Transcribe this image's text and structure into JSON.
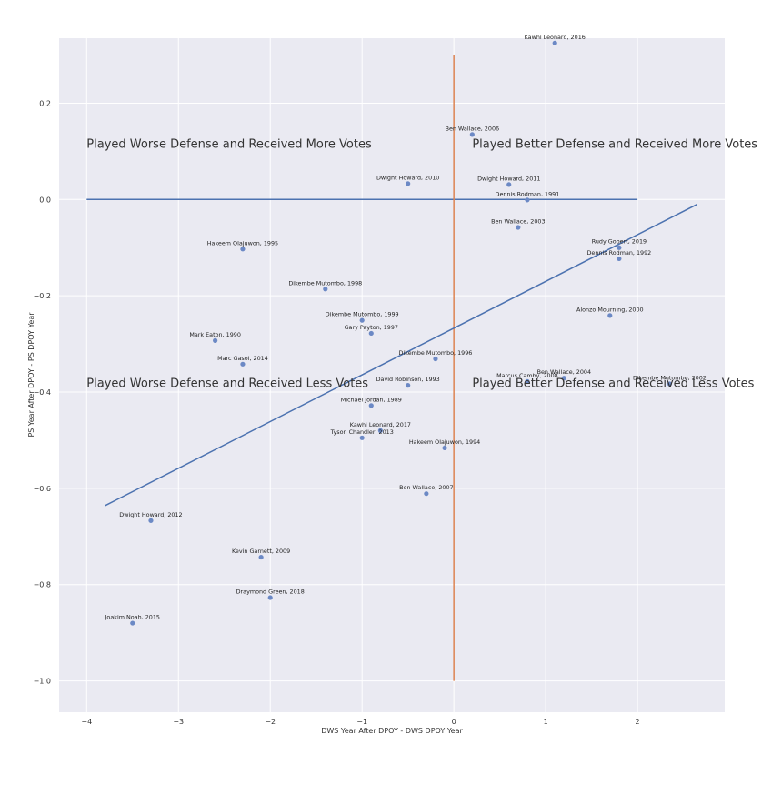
{
  "chart_data": {
    "type": "scatter",
    "title": "",
    "xlabel": "DWS Year After DPOY - DWS DPOY Year",
    "ylabel": "PS Year After DPOY - PS DPOY Year",
    "xlim": [
      -4.3,
      2.95
    ],
    "ylim": [
      -1.065,
      0.335
    ],
    "xticks": [
      -4,
      -3,
      -2,
      -1,
      0,
      1,
      2
    ],
    "yticks": [
      0.2,
      0.0,
      -0.2,
      -0.4,
      -0.6,
      -0.8,
      -1.0
    ],
    "xtick_labels": [
      "−4",
      "−3",
      "−2",
      "−1",
      "0",
      "1",
      "2"
    ],
    "ytick_labels": [
      "0.2",
      "0.0",
      "−0.2",
      "−0.4",
      "−0.6",
      "−0.8",
      "−1.0"
    ],
    "grid": true,
    "point_color": "#6c89c5",
    "points": [
      {
        "label": "Kawhi Leonard, 2016",
        "x": 1.1,
        "y": 0.325
      },
      {
        "label": "Ben Wallace, 2006",
        "x": 0.2,
        "y": 0.135
      },
      {
        "label": "Dwight Howard, 2010",
        "x": -0.5,
        "y": 0.033
      },
      {
        "label": "Dwight Howard, 2011",
        "x": 0.6,
        "y": 0.031
      },
      {
        "label": "Dennis Rodman, 1991",
        "x": 0.8,
        "y": -0.001
      },
      {
        "label": "Ben Wallace, 2003",
        "x": 0.7,
        "y": -0.058
      },
      {
        "label": "Hakeem Olajuwon, 1995",
        "x": -2.3,
        "y": -0.103
      },
      {
        "label": "Rudy Gobert, 2019",
        "x": 1.8,
        "y": -0.1
      },
      {
        "label": "Dennis Rodman, 1992",
        "x": 1.8,
        "y": -0.123
      },
      {
        "label": "Dikembe Mutombo, 1998",
        "x": -1.4,
        "y": -0.186
      },
      {
        "label": "Dikembe Mutombo, 1999",
        "x": -1.0,
        "y": -0.251
      },
      {
        "label": "Alonzo Mourning, 2000",
        "x": 1.7,
        "y": -0.241
      },
      {
        "label": "Gary Payton, 1997",
        "x": -0.9,
        "y": -0.278
      },
      {
        "label": "Mark Eaton, 1990",
        "x": -2.6,
        "y": -0.293
      },
      {
        "label": "Dikembe Mutombo, 1996",
        "x": -0.2,
        "y": -0.331
      },
      {
        "label": "Marc Gasol, 2014",
        "x": -2.3,
        "y": -0.342
      },
      {
        "label": "Ben Wallace, 2004",
        "x": 1.2,
        "y": -0.371
      },
      {
        "label": "Marcus Camby, 2008",
        "x": 0.8,
        "y": -0.378
      },
      {
        "label": "Dikembe Mutombo, 2002",
        "x": 2.35,
        "y": -0.383
      },
      {
        "label": "David Robinson, 1993",
        "x": -0.5,
        "y": -0.386
      },
      {
        "label": "Michael Jordan, 1989",
        "x": -0.9,
        "y": -0.428
      },
      {
        "label": "Kawhi Leonard, 2017",
        "x": -0.8,
        "y": -0.48
      },
      {
        "label": "Tyson Chandler, 2013",
        "x": -1.0,
        "y": -0.495
      },
      {
        "label": "Hakeem Olajuwon, 1994",
        "x": -0.1,
        "y": -0.516
      },
      {
        "label": "Ben Wallace, 2007",
        "x": -0.3,
        "y": -0.611
      },
      {
        "label": "Dwight Howard, 2012",
        "x": -3.3,
        "y": -0.667
      },
      {
        "label": "Kevin Garnett, 2009",
        "x": -2.1,
        "y": -0.743
      },
      {
        "label": "Draymond Green, 2018",
        "x": -2.0,
        "y": -0.827
      },
      {
        "label": "Joakim Noah, 2015",
        "x": -3.5,
        "y": -0.88
      }
    ],
    "reference_lines": [
      {
        "name": "zero-ps-line",
        "x": [
          -4,
          2
        ],
        "y": [
          0.0,
          0.0
        ],
        "color": "#4c72b0"
      },
      {
        "name": "zero-dws-line",
        "x": [
          0,
          0
        ],
        "y": [
          0.3,
          -1.0
        ],
        "color": "#dd8452"
      },
      {
        "name": "regression-line",
        "x": [
          -3.8,
          2.65
        ],
        "y": [
          -0.636,
          -0.01
        ],
        "color": "#4c72b0"
      }
    ],
    "annotations": [
      {
        "text": "Played Worse Defense and Received More Votes",
        "x": -4.0,
        "y": 0.107
      },
      {
        "text": "Played Better Defense and Received More Votes",
        "x": 0.2,
        "y": 0.107
      },
      {
        "text": "Played Worse Defense and Received Less Votes",
        "x": -4.0,
        "y": -0.39
      },
      {
        "text": "Played Better Defense and Received Less Votes",
        "x": 0.2,
        "y": -0.39
      }
    ]
  }
}
